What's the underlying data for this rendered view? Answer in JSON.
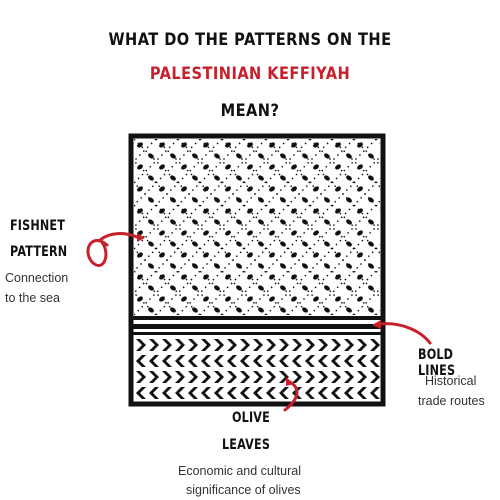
{
  "title": {
    "line1": "WHAT DO THE PATTERNS ON THE",
    "line2": "PALESTINIAN KEFFIYAH",
    "line3": "MEAN?"
  },
  "colors": {
    "accent": "#c8202b",
    "ink": "#111111"
  },
  "labels": {
    "fishnet": {
      "title_line1": "FISHNET",
      "title_line2": "PATTERN",
      "desc_line1": "Connection",
      "desc_line2": "to the sea"
    },
    "bold_lines": {
      "title": "BOLD LINES",
      "desc_line1": "Historical",
      "desc_line2": "trade routes"
    },
    "olive": {
      "title_line1": "OLIVE",
      "title_line2": "LEAVES",
      "desc_line1": "Economic and cultural",
      "desc_line2": "significance of olives"
    }
  }
}
